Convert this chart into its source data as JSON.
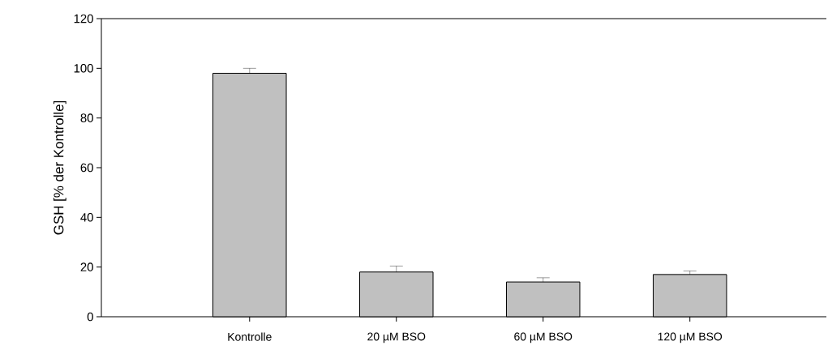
{
  "chart_data": {
    "type": "bar",
    "ylabel": "GSH  [% der Kontrolle]",
    "categories": [
      "Kontrolle",
      "20 µM BSO",
      "60 µM BSO",
      "120 µM BSO"
    ],
    "values": [
      98,
      18,
      14,
      17
    ],
    "errors": [
      2,
      2.4,
      1.7,
      1.4
    ],
    "color": "#c0c0c0",
    "ylim": [
      0,
      120
    ],
    "yticks": [
      0,
      20,
      40,
      60,
      80,
      100,
      120
    ],
    "grid": false
  }
}
